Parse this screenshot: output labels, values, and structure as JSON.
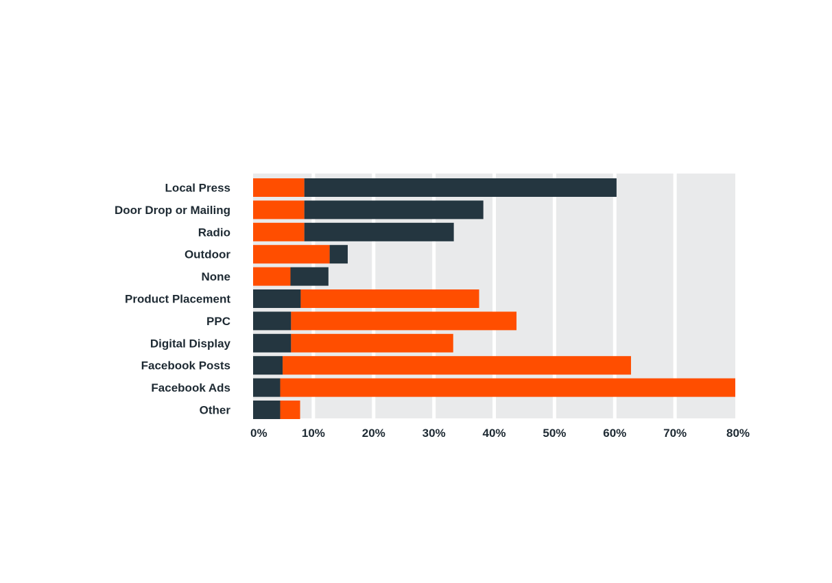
{
  "chart_data": {
    "type": "bar",
    "orientation": "horizontal",
    "stacked": true,
    "categories": [
      "Local Press",
      "Door Drop or Mailing",
      "Radio",
      "Outdoor",
      "None",
      "Product Placement",
      "PPC",
      "Digital Display",
      "Facebook Posts",
      "Facebook Ads",
      "Other"
    ],
    "series": [
      {
        "color": "#ff4e00",
        "values": [
          8.5,
          8.5,
          8.5,
          12.7,
          6.2,
          29.6,
          37.4,
          26.9,
          57.8,
          75.5,
          3.3
        ]
      },
      {
        "color": "#243640",
        "values": [
          51.8,
          29.7,
          24.8,
          3.0,
          6.3,
          7.9,
          6.3,
          6.3,
          4.9,
          4.5,
          4.5
        ]
      }
    ],
    "segment_order": [
      [
        "#ff4e00",
        "#243640"
      ],
      [
        "#ff4e00",
        "#243640"
      ],
      [
        "#ff4e00",
        "#243640"
      ],
      [
        "#ff4e00",
        "#243640"
      ],
      [
        "#ff4e00",
        "#243640"
      ],
      [
        "#243640",
        "#ff4e00"
      ],
      [
        "#243640",
        "#ff4e00"
      ],
      [
        "#243640",
        "#ff4e00"
      ],
      [
        "#243640",
        "#ff4e00"
      ],
      [
        "#243640",
        "#ff4e00"
      ],
      [
        "#243640",
        "#ff4e00"
      ]
    ],
    "xlim": [
      0,
      80
    ],
    "xticks": [
      "0%",
      "10%",
      "20%",
      "30%",
      "40%",
      "50%",
      "60%",
      "70%",
      "80%"
    ],
    "grid": true,
    "background_color": "#e9eaeb",
    "title": "",
    "xlabel": "",
    "ylabel": ""
  }
}
